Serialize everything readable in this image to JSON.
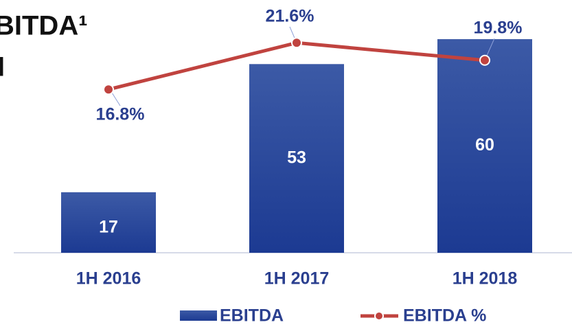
{
  "chart_data": {
    "type": "bar",
    "title": "BITDA¹",
    "subtitle": "I",
    "categories": [
      "1H 2016",
      "1H 2017",
      "1H 2018"
    ],
    "ylim": [
      0,
      71
    ],
    "y2lim": [
      0,
      26
    ],
    "series": [
      {
        "name": "EBITDA",
        "type": "bar",
        "color": "#22409a",
        "values": [
          17,
          53,
          60
        ]
      },
      {
        "name": "EBITDA %",
        "type": "line",
        "axis": "y2",
        "color": "#c0433f",
        "values": [
          16.8,
          21.6,
          19.8
        ],
        "value_labels": [
          "16.8%",
          "21.6%",
          "19.8%"
        ]
      }
    ],
    "legend": "bottom"
  }
}
